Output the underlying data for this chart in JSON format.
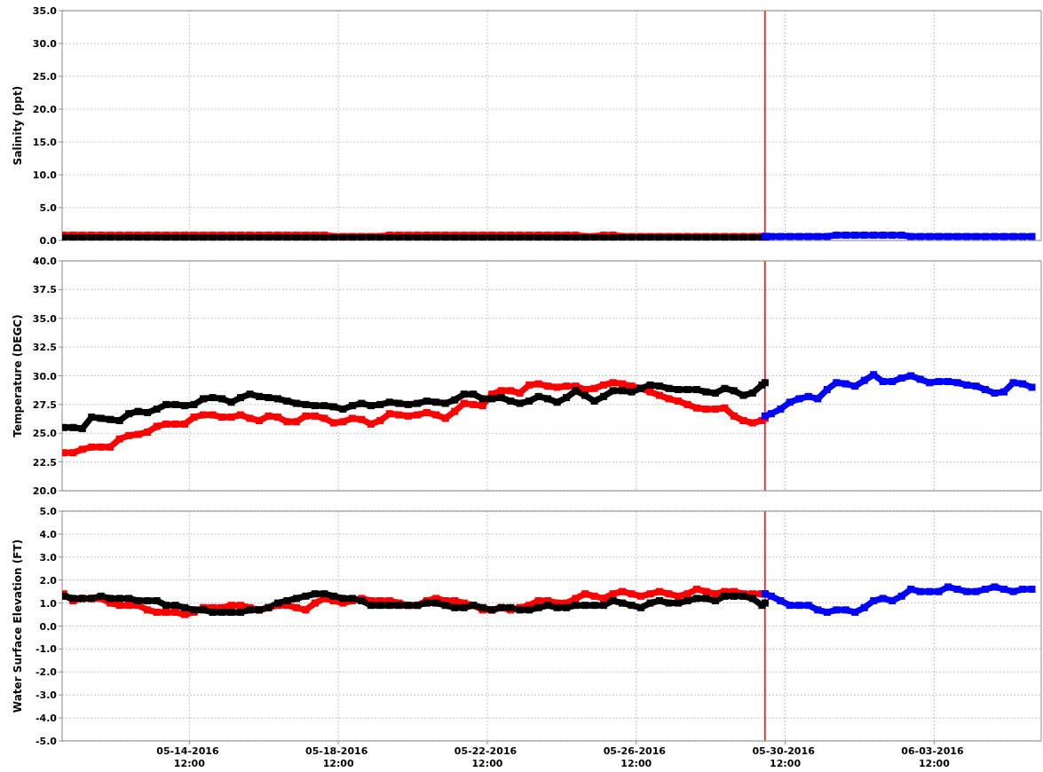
{
  "chart_data": [
    {
      "type": "line",
      "ylabel": "Salinity (ppt)",
      "tick_labels": "y",
      "grid": true,
      "marker": "square",
      "xlim": [
        "2016-05-11T02:00",
        "2016-06-06T09:00"
      ],
      "xticks": [
        {
          "value": "2016-05-14T12:00",
          "label": null
        },
        {
          "value": "2016-05-18T12:00",
          "label": null
        },
        {
          "value": "2016-05-22T12:00",
          "label": null
        },
        {
          "value": "2016-05-26T12:00",
          "label": null
        },
        {
          "value": "2016-05-30T12:00",
          "label": null
        },
        {
          "value": "2016-06-03T12:00",
          "label": null
        }
      ],
      "ylim": [
        0,
        35
      ],
      "yticks": [
        {
          "value": 0,
          "label": "0.0"
        },
        {
          "value": 5,
          "label": "5.0"
        },
        {
          "value": 10,
          "label": "10.0"
        },
        {
          "value": 15,
          "label": "15.0"
        },
        {
          "value": 20,
          "label": "20.0"
        },
        {
          "value": 25,
          "label": "25.0"
        },
        {
          "value": 30,
          "label": "30.0"
        },
        {
          "value": 35,
          "label": "35.0"
        }
      ],
      "ref_lines": [
        {
          "axis": "x",
          "value": "2016-05-29T23:00",
          "color": "#ff0000"
        }
      ],
      "x": [
        "2016-05-11T03:00",
        "2016-05-11T09:00",
        "2016-05-11T15:00",
        "2016-05-11T21:00",
        "2016-05-12T03:00",
        "2016-05-12T09:00",
        "2016-05-12T15:00",
        "2016-05-12T21:00",
        "2016-05-13T03:00",
        "2016-05-13T09:00",
        "2016-05-13T15:00",
        "2016-05-13T21:00",
        "2016-05-14T03:00",
        "2016-05-14T09:00",
        "2016-05-14T15:00",
        "2016-05-14T21:00",
        "2016-05-15T03:00",
        "2016-05-15T09:00",
        "2016-05-15T15:00",
        "2016-05-15T21:00",
        "2016-05-16T03:00",
        "2016-05-16T09:00",
        "2016-05-16T15:00",
        "2016-05-16T21:00",
        "2016-05-17T03:00",
        "2016-05-17T09:00",
        "2016-05-17T15:00",
        "2016-05-17T21:00",
        "2016-05-18T03:00",
        "2016-05-18T09:00",
        "2016-05-18T15:00",
        "2016-05-18T21:00",
        "2016-05-19T03:00",
        "2016-05-19T09:00",
        "2016-05-19T15:00",
        "2016-05-19T21:00",
        "2016-05-20T03:00",
        "2016-05-20T09:00",
        "2016-05-20T15:00",
        "2016-05-20T21:00",
        "2016-05-21T03:00",
        "2016-05-21T09:00",
        "2016-05-21T15:00",
        "2016-05-21T21:00",
        "2016-05-22T03:00",
        "2016-05-22T09:00",
        "2016-05-22T15:00",
        "2016-05-22T21:00",
        "2016-05-23T03:00",
        "2016-05-23T09:00",
        "2016-05-23T15:00",
        "2016-05-23T21:00",
        "2016-05-24T03:00",
        "2016-05-24T09:00",
        "2016-05-24T15:00",
        "2016-05-24T21:00",
        "2016-05-25T03:00",
        "2016-05-25T09:00",
        "2016-05-25T15:00",
        "2016-05-25T21:00",
        "2016-05-26T03:00",
        "2016-05-26T09:00",
        "2016-05-26T15:00",
        "2016-05-26T21:00",
        "2016-05-27T03:00",
        "2016-05-27T09:00",
        "2016-05-27T15:00",
        "2016-05-27T21:00",
        "2016-05-28T03:00",
        "2016-05-28T09:00",
        "2016-05-28T15:00",
        "2016-05-28T21:00",
        "2016-05-29T03:00",
        "2016-05-29T09:00",
        "2016-05-29T15:00",
        "2016-05-29T21:00",
        "2016-05-29T23:00"
      ],
      "series": [
        {
          "color": "#ff0000",
          "values": [
            0.8,
            0.8,
            0.8,
            0.8,
            0.8,
            0.8,
            0.8,
            0.8,
            0.8,
            0.8,
            0.8,
            0.8,
            0.8,
            0.8,
            0.8,
            0.8,
            0.8,
            0.8,
            0.8,
            0.8,
            0.8,
            0.8,
            0.8,
            0.8,
            0.8,
            0.8,
            0.8,
            0.8,
            0.8,
            0.6,
            0.6,
            0.6,
            0.6,
            0.6,
            0.6,
            0.8,
            0.8,
            0.8,
            0.8,
            0.8,
            0.8,
            0.8,
            0.8,
            0.8,
            0.8,
            0.8,
            0.8,
            0.8,
            0.8,
            0.8,
            0.8,
            0.8,
            0.8,
            0.8,
            0.8,
            0.8,
            0.6,
            0.6,
            0.8,
            0.8,
            0.6,
            0.6,
            0.6,
            0.6,
            0.6,
            0.6,
            0.6,
            0.6,
            0.6,
            0.6,
            0.6,
            0.6,
            0.6,
            0.6,
            0.6,
            0.6,
            0.6
          ]
        },
        {
          "color": "#000000",
          "values": [
            0.4,
            0.4,
            0.4,
            0.4,
            0.4,
            0.4,
            0.4,
            0.4,
            0.4,
            0.4,
            0.4,
            0.4,
            0.4,
            0.4,
            0.4,
            0.4,
            0.4,
            0.4,
            0.4,
            0.4,
            0.4,
            0.4,
            0.4,
            0.4,
            0.4,
            0.4,
            0.4,
            0.4,
            0.4,
            0.4,
            0.4,
            0.4,
            0.4,
            0.4,
            0.4,
            0.4,
            0.4,
            0.4,
            0.4,
            0.4,
            0.4,
            0.4,
            0.4,
            0.4,
            0.4,
            0.4,
            0.4,
            0.4,
            0.4,
            0.4,
            0.4,
            0.4,
            0.4,
            0.4,
            0.4,
            0.4,
            0.4,
            0.4,
            0.4,
            0.4,
            0.4,
            0.4,
            0.4,
            0.4,
            0.4,
            0.4,
            0.4,
            0.4,
            0.4,
            0.4,
            0.4,
            0.4,
            0.4,
            0.4,
            0.4,
            0.4,
            0.4
          ]
        },
        {
          "color": "#0000ff",
          "x": [
            "2016-05-29T23:00",
            "2016-05-30T03:00",
            "2016-05-30T09:00",
            "2016-05-30T15:00",
            "2016-05-30T21:00",
            "2016-05-31T03:00",
            "2016-05-31T09:00",
            "2016-05-31T15:00",
            "2016-05-31T21:00",
            "2016-06-01T03:00",
            "2016-06-01T09:00",
            "2016-06-01T15:00",
            "2016-06-01T21:00",
            "2016-06-02T03:00",
            "2016-06-02T09:00",
            "2016-06-02T15:00",
            "2016-06-02T21:00",
            "2016-06-03T03:00",
            "2016-06-03T09:00",
            "2016-06-03T15:00",
            "2016-06-03T21:00",
            "2016-06-04T03:00",
            "2016-06-04T09:00",
            "2016-06-04T15:00",
            "2016-06-04T21:00",
            "2016-06-05T03:00",
            "2016-06-05T09:00",
            "2016-06-05T15:00",
            "2016-06-05T21:00",
            "2016-06-06T03:00"
          ],
          "values": [
            0.6,
            0.6,
            0.6,
            0.6,
            0.6,
            0.6,
            0.6,
            0.6,
            0.8,
            0.8,
            0.8,
            0.8,
            0.8,
            0.8,
            0.8,
            0.8,
            0.6,
            0.6,
            0.6,
            0.6,
            0.6,
            0.6,
            0.6,
            0.6,
            0.6,
            0.6,
            0.6,
            0.6,
            0.6,
            0.6
          ]
        }
      ]
    },
    {
      "type": "line",
      "ylabel": "Temperature (DEGC)",
      "tick_labels": "y",
      "grid": true,
      "marker": "square",
      "xlim": [
        "2016-05-11T02:00",
        "2016-06-06T09:00"
      ],
      "xticks": [
        {
          "value": "2016-05-14T12:00",
          "label": null
        },
        {
          "value": "2016-05-18T12:00",
          "label": null
        },
        {
          "value": "2016-05-22T12:00",
          "label": null
        },
        {
          "value": "2016-05-26T12:00",
          "label": null
        },
        {
          "value": "2016-05-30T12:00",
          "label": null
        },
        {
          "value": "2016-06-03T12:00",
          "label": null
        }
      ],
      "ylim": [
        20,
        40
      ],
      "yticks": [
        {
          "value": 20,
          "label": "20.0"
        },
        22.5,
        {
          "value": 25,
          "label": "25.0"
        },
        27.5,
        {
          "value": 30,
          "label": "30.0"
        },
        32.5,
        {
          "value": 35,
          "label": "35.0"
        },
        37.5,
        {
          "value": 40,
          "label": "40.0"
        }
      ],
      "ref_lines": [
        {
          "axis": "x",
          "value": "2016-05-29T23:00",
          "color": "#ff0000"
        }
      ],
      "x": [
        "2016-05-11T03:00",
        "2016-05-11T09:00",
        "2016-05-11T15:00",
        "2016-05-11T21:00",
        "2016-05-12T03:00",
        "2016-05-12T09:00",
        "2016-05-12T15:00",
        "2016-05-12T21:00",
        "2016-05-13T03:00",
        "2016-05-13T09:00",
        "2016-05-13T15:00",
        "2016-05-13T21:00",
        "2016-05-14T03:00",
        "2016-05-14T09:00",
        "2016-05-14T15:00",
        "2016-05-14T21:00",
        "2016-05-15T03:00",
        "2016-05-15T09:00",
        "2016-05-15T15:00",
        "2016-05-15T21:00",
        "2016-05-16T03:00",
        "2016-05-16T09:00",
        "2016-05-16T15:00",
        "2016-05-16T21:00",
        "2016-05-17T03:00",
        "2016-05-17T09:00",
        "2016-05-17T15:00",
        "2016-05-17T21:00",
        "2016-05-18T03:00",
        "2016-05-18T09:00",
        "2016-05-18T15:00",
        "2016-05-18T21:00",
        "2016-05-19T03:00",
        "2016-05-19T09:00",
        "2016-05-19T15:00",
        "2016-05-19T21:00",
        "2016-05-20T03:00",
        "2016-05-20T09:00",
        "2016-05-20T15:00",
        "2016-05-20T21:00",
        "2016-05-21T03:00",
        "2016-05-21T09:00",
        "2016-05-21T15:00",
        "2016-05-21T21:00",
        "2016-05-22T03:00",
        "2016-05-22T09:00",
        "2016-05-22T15:00",
        "2016-05-22T21:00",
        "2016-05-23T03:00",
        "2016-05-23T09:00",
        "2016-05-23T15:00",
        "2016-05-23T21:00",
        "2016-05-24T03:00",
        "2016-05-24T09:00",
        "2016-05-24T15:00",
        "2016-05-24T21:00",
        "2016-05-25T03:00",
        "2016-05-25T09:00",
        "2016-05-25T15:00",
        "2016-05-25T21:00",
        "2016-05-26T03:00",
        "2016-05-26T09:00",
        "2016-05-26T15:00",
        "2016-05-26T21:00",
        "2016-05-27T03:00",
        "2016-05-27T09:00",
        "2016-05-27T15:00",
        "2016-05-27T21:00",
        "2016-05-28T03:00",
        "2016-05-28T09:00",
        "2016-05-28T15:00",
        "2016-05-28T21:00",
        "2016-05-29T03:00",
        "2016-05-29T09:00",
        "2016-05-29T15:00",
        "2016-05-29T21:00",
        "2016-05-29T23:00"
      ],
      "series": [
        {
          "color": "#ff0000",
          "values": [
            23.3,
            23.3,
            23.6,
            23.8,
            23.8,
            23.8,
            24.5,
            24.8,
            24.9,
            25.1,
            25.6,
            25.8,
            25.8,
            25.8,
            26.4,
            26.6,
            26.6,
            26.4,
            26.4,
            26.6,
            26.3,
            26.1,
            26.5,
            26.4,
            26.0,
            26.0,
            26.5,
            26.5,
            26.3,
            25.9,
            26.0,
            26.3,
            26.2,
            25.8,
            26.1,
            26.7,
            26.6,
            26.5,
            26.6,
            26.8,
            26.6,
            26.3,
            26.9,
            27.6,
            27.5,
            27.4,
            28.4,
            28.7,
            28.7,
            28.5,
            29.2,
            29.3,
            29.1,
            29.0,
            29.1,
            29.1,
            28.8,
            28.9,
            29.2,
            29.4,
            29.3,
            29.1,
            28.9,
            28.6,
            28.3,
            28.0,
            27.8,
            27.5,
            27.2,
            27.1,
            27.1,
            27.2,
            26.5,
            26.1,
            25.9,
            26.1,
            26.3
          ]
        },
        {
          "color": "#000000",
          "values": [
            25.5,
            25.5,
            25.4,
            26.4,
            26.3,
            26.2,
            26.1,
            26.7,
            26.9,
            26.8,
            27.1,
            27.5,
            27.5,
            27.4,
            27.5,
            28.0,
            28.1,
            28.0,
            27.7,
            28.1,
            28.4,
            28.2,
            28.1,
            28.0,
            27.8,
            27.6,
            27.5,
            27.4,
            27.4,
            27.3,
            27.1,
            27.4,
            27.6,
            27.4,
            27.5,
            27.7,
            27.6,
            27.5,
            27.6,
            27.8,
            27.7,
            27.6,
            27.9,
            28.4,
            28.4,
            28.0,
            28.0,
            28.1,
            27.8,
            27.6,
            27.8,
            28.2,
            28.0,
            27.7,
            28.1,
            28.7,
            28.3,
            27.8,
            28.2,
            28.7,
            28.7,
            28.6,
            28.9,
            29.2,
            29.1,
            28.9,
            28.8,
            28.8,
            28.8,
            28.6,
            28.5,
            28.9,
            28.7,
            28.3,
            28.5,
            29.2,
            29.4
          ]
        },
        {
          "color": "#0000ff",
          "x": [
            "2016-05-29T23:00",
            "2016-05-30T03:00",
            "2016-05-30T09:00",
            "2016-05-30T15:00",
            "2016-05-30T21:00",
            "2016-05-31T03:00",
            "2016-05-31T09:00",
            "2016-05-31T15:00",
            "2016-05-31T21:00",
            "2016-06-01T03:00",
            "2016-06-01T09:00",
            "2016-06-01T15:00",
            "2016-06-01T21:00",
            "2016-06-02T03:00",
            "2016-06-02T09:00",
            "2016-06-02T15:00",
            "2016-06-02T21:00",
            "2016-06-03T03:00",
            "2016-06-03T09:00",
            "2016-06-03T15:00",
            "2016-06-03T21:00",
            "2016-06-04T03:00",
            "2016-06-04T09:00",
            "2016-06-04T15:00",
            "2016-06-04T21:00",
            "2016-06-05T03:00",
            "2016-06-05T09:00",
            "2016-06-05T15:00",
            "2016-06-05T21:00",
            "2016-06-06T03:00"
          ],
          "values": [
            26.5,
            26.7,
            27.1,
            27.7,
            28.0,
            28.2,
            28.0,
            28.8,
            29.4,
            29.3,
            29.1,
            29.6,
            30.1,
            29.5,
            29.5,
            29.8,
            30.0,
            29.7,
            29.4,
            29.5,
            29.5,
            29.4,
            29.2,
            29.1,
            28.8,
            28.5,
            28.6,
            29.4,
            29.3,
            29.0
          ]
        }
      ]
    },
    {
      "type": "line",
      "ylabel": "Water Surface Elevation (FT)",
      "grid": true,
      "marker": "square",
      "xlim": [
        "2016-05-11T02:00",
        "2016-06-06T09:00"
      ],
      "xticks": [
        {
          "value": "2016-05-14T12:00",
          "label": "05-14-2016 12:00"
        },
        {
          "value": "2016-05-18T12:00",
          "label": "05-18-2016 12:00"
        },
        {
          "value": "2016-05-22T12:00",
          "label": "05-22-2016 12:00"
        },
        {
          "value": "2016-05-26T12:00",
          "label": "05-26-2016 12:00"
        },
        {
          "value": "2016-05-30T12:00",
          "label": "05-30-2016 12:00"
        },
        {
          "value": "2016-06-03T12:00",
          "label": "06-03-2016 12:00"
        }
      ],
      "ylim": [
        -5,
        5
      ],
      "yticks": [
        {
          "value": -5,
          "label": "-5.0"
        },
        {
          "value": -4,
          "label": "-4.0"
        },
        {
          "value": -3,
          "label": "-3.0"
        },
        {
          "value": -2,
          "label": "-2.0"
        },
        {
          "value": -1,
          "label": "-1.0"
        },
        {
          "value": 0,
          "label": "0.0"
        },
        {
          "value": 1,
          "label": "1.0"
        },
        {
          "value": 2,
          "label": "2.0"
        },
        {
          "value": 3,
          "label": "3.0"
        },
        {
          "value": 4,
          "label": "4.0"
        },
        {
          "value": 5,
          "label": "5.0"
        }
      ],
      "ref_lines": [
        {
          "axis": "x",
          "value": "2016-05-29T23:00",
          "color": "#ff0000"
        }
      ],
      "x": [
        "2016-05-11T03:00",
        "2016-05-11T09:00",
        "2016-05-11T15:00",
        "2016-05-11T21:00",
        "2016-05-12T03:00",
        "2016-05-12T09:00",
        "2016-05-12T15:00",
        "2016-05-12T21:00",
        "2016-05-13T03:00",
        "2016-05-13T09:00",
        "2016-05-13T15:00",
        "2016-05-13T21:00",
        "2016-05-14T03:00",
        "2016-05-14T09:00",
        "2016-05-14T15:00",
        "2016-05-14T21:00",
        "2016-05-15T03:00",
        "2016-05-15T09:00",
        "2016-05-15T15:00",
        "2016-05-15T21:00",
        "2016-05-16T03:00",
        "2016-05-16T09:00",
        "2016-05-16T15:00",
        "2016-05-16T21:00",
        "2016-05-17T03:00",
        "2016-05-17T09:00",
        "2016-05-17T15:00",
        "2016-05-17T21:00",
        "2016-05-18T03:00",
        "2016-05-18T09:00",
        "2016-05-18T15:00",
        "2016-05-18T21:00",
        "2016-05-19T03:00",
        "2016-05-19T09:00",
        "2016-05-19T15:00",
        "2016-05-19T21:00",
        "2016-05-20T03:00",
        "2016-05-20T09:00",
        "2016-05-20T15:00",
        "2016-05-20T21:00",
        "2016-05-21T03:00",
        "2016-05-21T09:00",
        "2016-05-21T15:00",
        "2016-05-21T21:00",
        "2016-05-22T03:00",
        "2016-05-22T09:00",
        "2016-05-22T15:00",
        "2016-05-22T21:00",
        "2016-05-23T03:00",
        "2016-05-23T09:00",
        "2016-05-23T15:00",
        "2016-05-23T21:00",
        "2016-05-24T03:00",
        "2016-05-24T09:00",
        "2016-05-24T15:00",
        "2016-05-24T21:00",
        "2016-05-25T03:00",
        "2016-05-25T09:00",
        "2016-05-25T15:00",
        "2016-05-25T21:00",
        "2016-05-26T03:00",
        "2016-05-26T09:00",
        "2016-05-26T15:00",
        "2016-05-26T21:00",
        "2016-05-27T03:00",
        "2016-05-27T09:00",
        "2016-05-27T15:00",
        "2016-05-27T21:00",
        "2016-05-28T03:00",
        "2016-05-28T09:00",
        "2016-05-28T15:00",
        "2016-05-28T21:00",
        "2016-05-29T03:00",
        "2016-05-29T09:00",
        "2016-05-29T15:00",
        "2016-05-29T21:00",
        "2016-05-29T23:00"
      ],
      "series": [
        {
          "color": "#ff0000",
          "values": [
            1.4,
            1.1,
            1.2,
            1.2,
            1.2,
            1.0,
            0.9,
            0.9,
            0.9,
            0.7,
            0.6,
            0.6,
            0.6,
            0.5,
            0.6,
            0.8,
            0.8,
            0.8,
            0.9,
            0.9,
            0.8,
            0.7,
            0.8,
            0.9,
            0.9,
            0.8,
            0.7,
            1.0,
            1.2,
            1.1,
            1.0,
            1.1,
            1.2,
            1.1,
            1.1,
            1.1,
            1.0,
            0.9,
            0.9,
            1.1,
            1.2,
            1.1,
            1.1,
            1.0,
            0.9,
            0.7,
            0.7,
            0.8,
            0.7,
            0.8,
            0.9,
            1.1,
            1.1,
            1.0,
            1.0,
            1.2,
            1.4,
            1.3,
            1.2,
            1.4,
            1.5,
            1.4,
            1.3,
            1.4,
            1.5,
            1.4,
            1.3,
            1.4,
            1.6,
            1.5,
            1.4,
            1.5,
            1.5,
            1.4,
            1.4,
            1.4,
            1.4
          ]
        },
        {
          "color": "#000000",
          "values": [
            1.3,
            1.2,
            1.2,
            1.2,
            1.3,
            1.2,
            1.2,
            1.2,
            1.1,
            1.1,
            1.1,
            0.9,
            0.9,
            0.8,
            0.7,
            0.7,
            0.6,
            0.6,
            0.6,
            0.6,
            0.7,
            0.7,
            0.8,
            1.0,
            1.1,
            1.2,
            1.3,
            1.4,
            1.4,
            1.3,
            1.2,
            1.2,
            1.1,
            0.9,
            0.9,
            0.9,
            0.9,
            0.9,
            0.9,
            1.0,
            1.0,
            0.9,
            0.8,
            0.8,
            0.9,
            0.8,
            0.7,
            0.8,
            0.8,
            0.7,
            0.7,
            0.8,
            0.9,
            0.8,
            0.8,
            0.9,
            0.9,
            0.9,
            0.9,
            1.1,
            1.0,
            0.9,
            0.8,
            1.0,
            1.1,
            1.0,
            1.0,
            1.1,
            1.2,
            1.2,
            1.1,
            1.3,
            1.3,
            1.3,
            1.2,
            0.9,
            1.0
          ]
        },
        {
          "color": "#0000ff",
          "x": [
            "2016-05-29T23:00",
            "2016-05-30T03:00",
            "2016-05-30T09:00",
            "2016-05-30T15:00",
            "2016-05-30T21:00",
            "2016-05-31T03:00",
            "2016-05-31T09:00",
            "2016-05-31T15:00",
            "2016-05-31T21:00",
            "2016-06-01T03:00",
            "2016-06-01T09:00",
            "2016-06-01T15:00",
            "2016-06-01T21:00",
            "2016-06-02T03:00",
            "2016-06-02T09:00",
            "2016-06-02T15:00",
            "2016-06-02T21:00",
            "2016-06-03T03:00",
            "2016-06-03T09:00",
            "2016-06-03T15:00",
            "2016-06-03T21:00",
            "2016-06-04T03:00",
            "2016-06-04T09:00",
            "2016-06-04T15:00",
            "2016-06-04T21:00",
            "2016-06-05T03:00",
            "2016-06-05T09:00",
            "2016-06-05T15:00",
            "2016-06-05T21:00",
            "2016-06-06T03:00"
          ],
          "values": [
            1.4,
            1.3,
            1.1,
            0.9,
            0.9,
            0.9,
            0.7,
            0.6,
            0.7,
            0.7,
            0.6,
            0.8,
            1.1,
            1.2,
            1.1,
            1.3,
            1.6,
            1.5,
            1.5,
            1.5,
            1.7,
            1.6,
            1.5,
            1.5,
            1.6,
            1.7,
            1.6,
            1.5,
            1.6,
            1.6
          ]
        }
      ]
    }
  ]
}
